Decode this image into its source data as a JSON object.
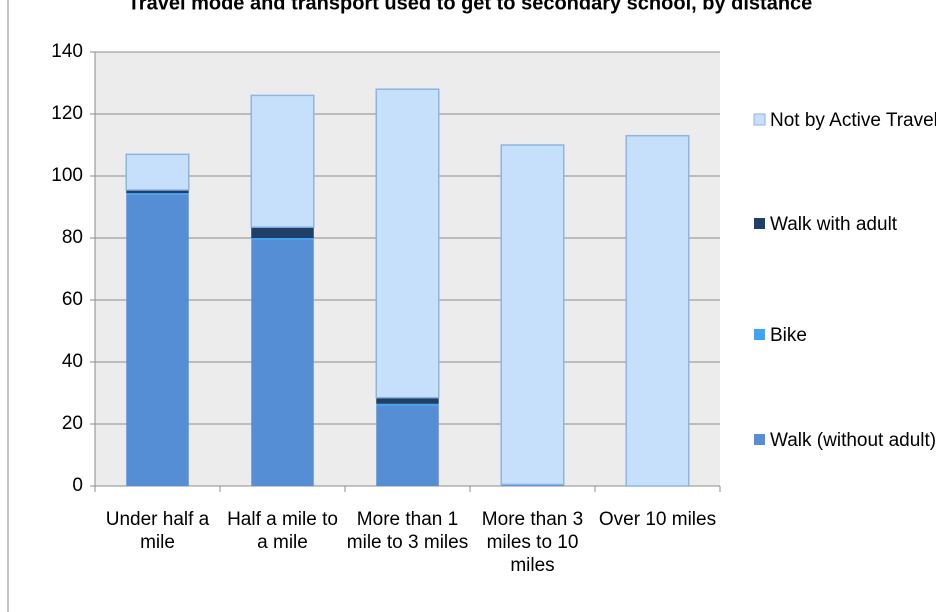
{
  "chart_data": {
    "type": "stacked_bar",
    "title": "Travel mode and transport used to get to secondary school, by distance",
    "categories": [
      "Under half a mile",
      "Half a mile to a mile",
      "More than 1 mile to 3 miles",
      "More than 3 miles to 10 miles",
      "Over 10 miles"
    ],
    "series": [
      {
        "name": "Walk (without adult)",
        "color": "#558ed5",
        "values": [
          94,
          79.5,
          26,
          0.5,
          0
        ]
      },
      {
        "name": "Bike",
        "color": "#3fa3f5",
        "values": [
          0.5,
          0.5,
          0.5,
          0,
          0
        ]
      },
      {
        "name": "Walk with adult",
        "color": "#1f3f68",
        "values": [
          1,
          3.5,
          2,
          0,
          0
        ]
      },
      {
        "name": "Not by Active Travel",
        "color": "#c6e0fb",
        "values": [
          11.5,
          42.5,
          99.5,
          109.5,
          113
        ]
      }
    ],
    "ylim": [
      0,
      140
    ],
    "yticks": [
      0,
      20,
      40,
      60,
      80,
      100,
      120,
      140
    ],
    "grid": true,
    "legend": "right"
  }
}
